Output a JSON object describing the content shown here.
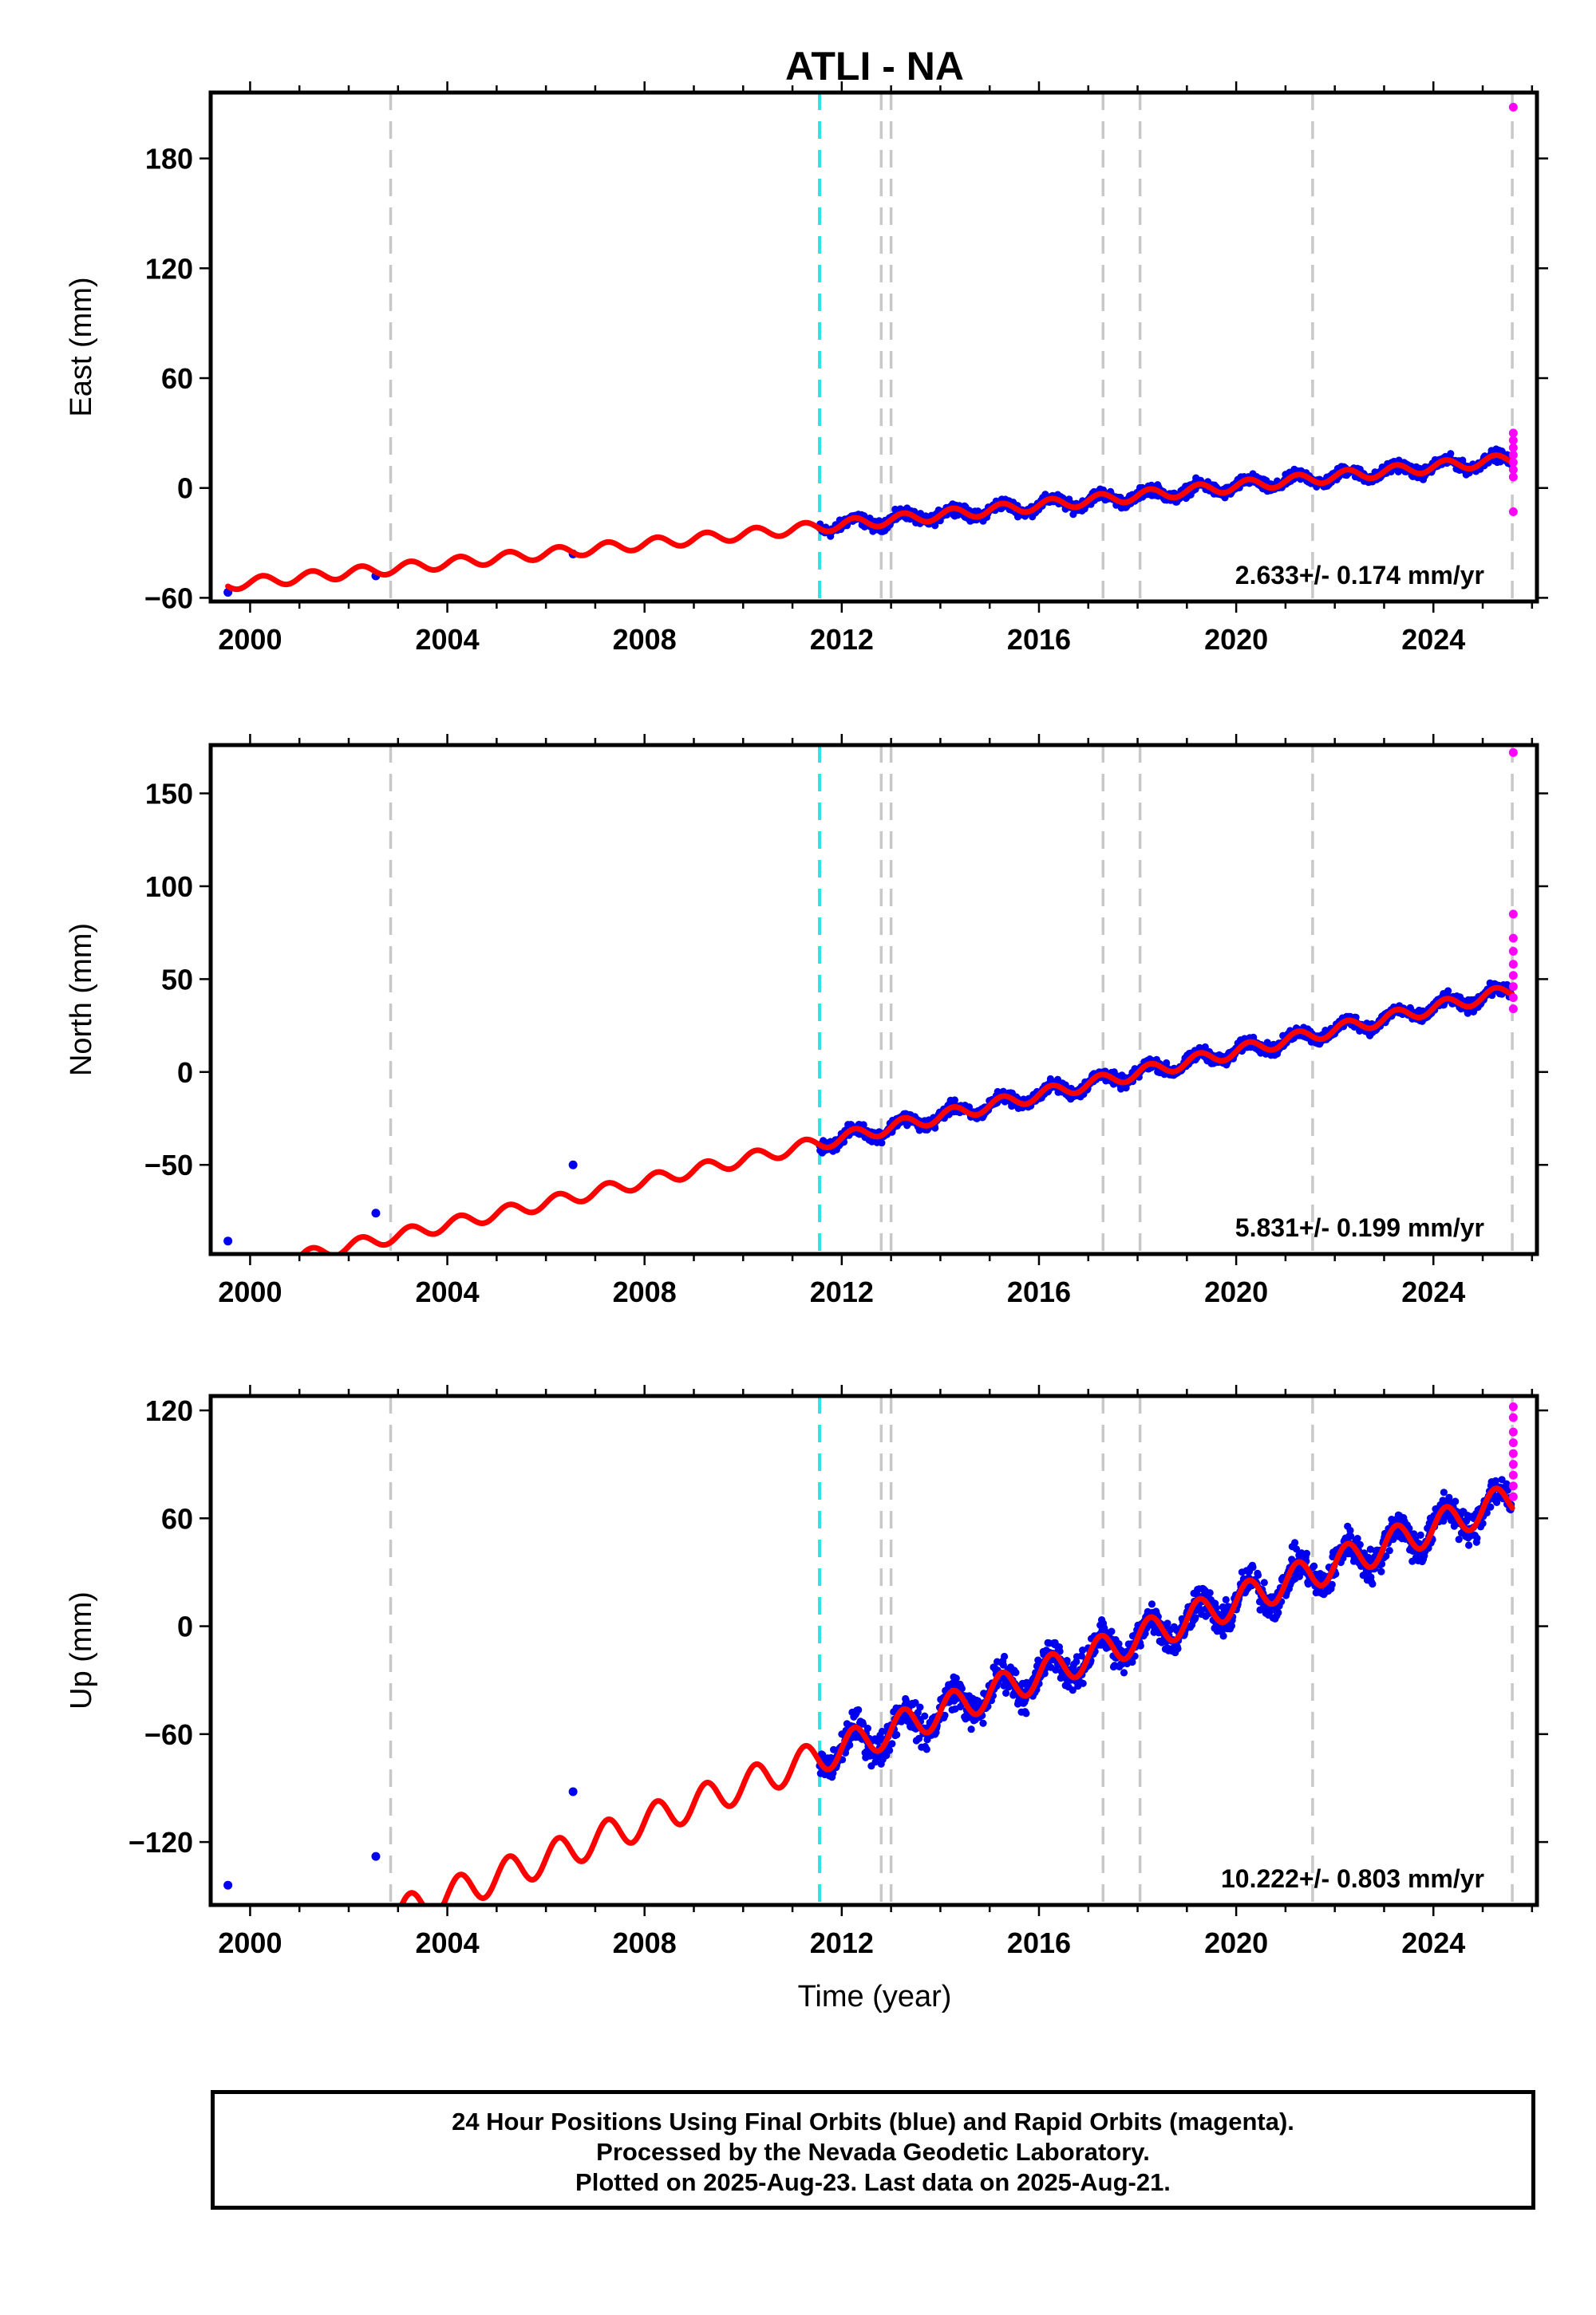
{
  "title": "ATLI - NA",
  "xlabel": "Time (year)",
  "footer": {
    "line1": "24 Hour Positions Using Final Orbits (blue) and Rapid Orbits (magenta).",
    "line2": "Processed by the Nevada Geodetic Laboratory.",
    "line3": "Plotted on 2025-Aug-23. Last data on 2025-Aug-21."
  },
  "colors": {
    "final_orbits": "#0000ee",
    "rapid_orbits": "#ff00ff",
    "model": "#ff0000",
    "equipment_change": "#2fe3ee",
    "event": "#c8c8c8"
  },
  "chart_data": [
    {
      "type": "scatter",
      "ylabel": "East (mm)",
      "rate": "2.633+/- 0.174 mm/yr",
      "xlim": [
        1999.2,
        2026.1
      ],
      "ylim": [
        -62,
        216
      ],
      "x_ticks": [
        2000,
        2004,
        2008,
        2012,
        2016,
        2020,
        2024
      ],
      "y_ticks": [
        -60,
        0,
        60,
        120,
        180
      ],
      "y_tick_labels": [
        "−60",
        "0",
        "60",
        "120",
        "180"
      ],
      "trend": {
        "ref_year": 2025.3,
        "ref_value": 15,
        "rate": 2.633,
        "amplitude": 3.0,
        "noise": 2.6
      },
      "steps": [],
      "equipment_change": [
        2011.55
      ],
      "events": [
        2002.85,
        2012.8,
        2013.0,
        2017.3,
        2018.05,
        2021.55,
        2025.6
      ],
      "sparse_points": [
        [
          1999.55,
          -57
        ],
        [
          2002.55,
          -48
        ],
        [
          2006.55,
          -36
        ]
      ],
      "dense_range": [
        2011.55,
        2025.58
      ],
      "rapid_points": [
        [
          2025.62,
          208
        ],
        [
          2025.62,
          30
        ],
        [
          2025.62,
          26
        ],
        [
          2025.62,
          22
        ],
        [
          2025.62,
          18
        ],
        [
          2025.62,
          14
        ],
        [
          2025.62,
          10
        ],
        [
          2025.62,
          6
        ],
        [
          2025.62,
          -13
        ]
      ]
    },
    {
      "type": "scatter",
      "ylabel": "North (mm)",
      "rate": "5.831+/- 0.199 mm/yr",
      "xlim": [
        1999.2,
        2026.1
      ],
      "ylim": [
        -98,
        176
      ],
      "x_ticks": [
        2000,
        2004,
        2008,
        2012,
        2016,
        2020,
        2024
      ],
      "y_ticks": [
        -50,
        0,
        50,
        100,
        150
      ],
      "y_tick_labels": [
        "−50",
        "0",
        "50",
        "100",
        "150"
      ],
      "trend": {
        "ref_year": 2025.3,
        "ref_value": 42,
        "rate": 5.831,
        "amplitude": 3.5,
        "noise": 2.8
      },
      "steps": [],
      "equipment_change": [
        2011.55
      ],
      "events": [
        2002.85,
        2012.8,
        2013.0,
        2017.3,
        2018.05,
        2021.55,
        2025.6
      ],
      "sparse_points": [
        [
          1999.55,
          -91
        ],
        [
          2002.55,
          -76
        ],
        [
          2006.55,
          -50
        ]
      ],
      "dense_range": [
        2011.55,
        2025.58
      ],
      "rapid_points": [
        [
          2025.62,
          172
        ],
        [
          2025.62,
          85
        ],
        [
          2025.62,
          72
        ],
        [
          2025.62,
          65
        ],
        [
          2025.62,
          58
        ],
        [
          2025.62,
          52
        ],
        [
          2025.62,
          46
        ],
        [
          2025.62,
          40
        ],
        [
          2025.62,
          34
        ]
      ]
    },
    {
      "type": "scatter",
      "ylabel": "Up (mm)",
      "rate": "10.222+/- 0.803 mm/yr",
      "xlim": [
        1999.2,
        2026.1
      ],
      "ylim": [
        -155,
        128
      ],
      "x_ticks": [
        2000,
        2004,
        2008,
        2012,
        2016,
        2020,
        2024
      ],
      "y_ticks": [
        -120,
        -60,
        0,
        60,
        120
      ],
      "y_tick_labels": [
        "−120",
        "−60",
        "0",
        "60",
        "120"
      ],
      "trend": {
        "ref_year": 2025.3,
        "ref_value": 68,
        "rate": 10.222,
        "amplitude": 9.0,
        "noise": 8.0
      },
      "steps": [
        [
          2002.85,
          -18
        ]
      ],
      "equipment_change": [
        2011.55
      ],
      "events": [
        2002.85,
        2012.8,
        2013.0,
        2017.3,
        2018.05,
        2021.55,
        2025.6
      ],
      "sparse_points": [
        [
          1999.55,
          -144
        ],
        [
          2002.55,
          -128
        ],
        [
          2006.55,
          -92
        ]
      ],
      "dense_range": [
        2011.55,
        2025.58
      ],
      "rapid_points": [
        [
          2025.62,
          122
        ],
        [
          2025.62,
          116
        ],
        [
          2025.62,
          108
        ],
        [
          2025.62,
          102
        ],
        [
          2025.62,
          96
        ],
        [
          2025.62,
          90
        ],
        [
          2025.62,
          84
        ],
        [
          2025.62,
          78
        ],
        [
          2025.62,
          72
        ]
      ]
    }
  ]
}
